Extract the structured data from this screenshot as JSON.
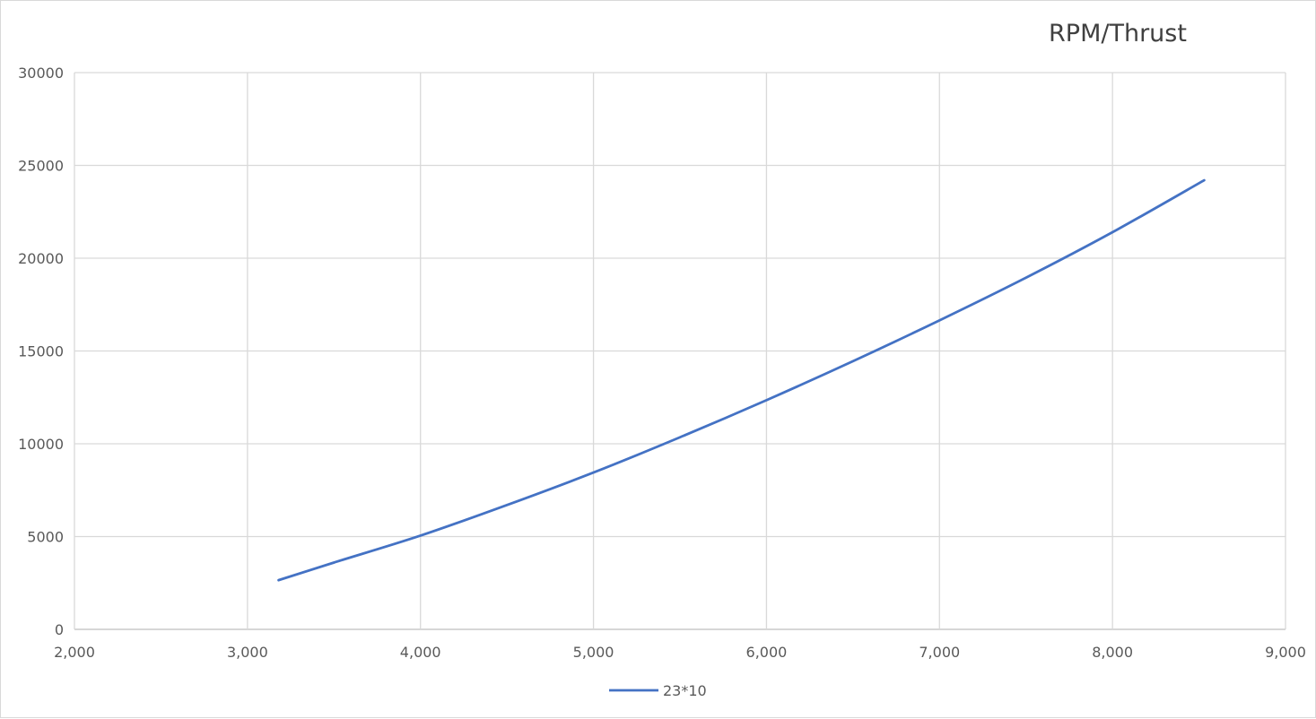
{
  "chart_data": {
    "type": "line",
    "title": "RPM/Thrust",
    "xlabel": "",
    "ylabel": "",
    "xlim": [
      2000,
      9000
    ],
    "ylim": [
      0,
      30000
    ],
    "x_ticks": [
      2000,
      3000,
      4000,
      5000,
      6000,
      7000,
      8000,
      9000
    ],
    "x_tick_labels": [
      "2,000",
      "3,000",
      "4,000",
      "5,000",
      "6,000",
      "7,000",
      "8,000",
      "9,000"
    ],
    "y_ticks": [
      0,
      5000,
      10000,
      15000,
      20000,
      25000,
      30000
    ],
    "y_tick_labels": [
      "0",
      "5000",
      "10000",
      "15000",
      "20000",
      "25000",
      "30000"
    ],
    "grid": true,
    "legend_position": "bottom",
    "series": [
      {
        "name": "23*10",
        "color": "#4472c4",
        "x": [
          3180,
          3500,
          4000,
          4500,
          5000,
          5500,
          6000,
          6500,
          7000,
          7500,
          8000,
          8530
        ],
        "y": [
          2650,
          3600,
          5050,
          6700,
          8450,
          10350,
          12350,
          14450,
          16650,
          18950,
          21400,
          24200
        ]
      }
    ]
  }
}
